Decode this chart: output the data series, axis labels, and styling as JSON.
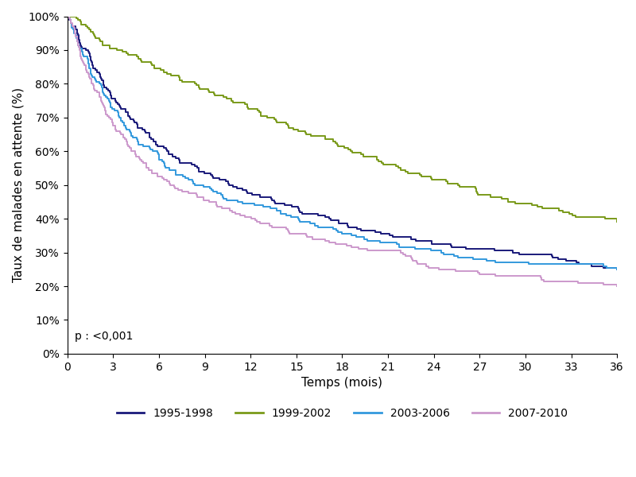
{
  "xlabel": "Temps (mois)",
  "ylabel": "Taux de malades en attente (%)",
  "xlim": [
    0,
    36
  ],
  "ylim": [
    0,
    100
  ],
  "xticks": [
    0,
    3,
    6,
    9,
    12,
    15,
    18,
    21,
    24,
    27,
    30,
    33,
    36
  ],
  "yticks": [
    0,
    10,
    20,
    30,
    40,
    50,
    60,
    70,
    80,
    90,
    100
  ],
  "annotation": "p : <0,001",
  "series": [
    {
      "label": "1995-1998",
      "color": "#1a1a7a",
      "linewidth": 1.4
    },
    {
      "label": "1999-2002",
      "color": "#7a9a1a",
      "linewidth": 1.4
    },
    {
      "label": "2003-2006",
      "color": "#3399dd",
      "linewidth": 1.4
    },
    {
      "label": "2007-2010",
      "color": "#cc99cc",
      "linewidth": 1.4
    }
  ],
  "key_points": {
    "series_0_1995": {
      "t": [
        0,
        1,
        2,
        3,
        4,
        5,
        6,
        7,
        8,
        9,
        10,
        11,
        12,
        13,
        14,
        15,
        16,
        17,
        18,
        20,
        22,
        24,
        26,
        28,
        30,
        33,
        36
      ],
      "s": [
        100,
        90,
        83,
        75,
        70,
        66,
        61,
        58,
        56,
        53,
        51,
        49,
        47,
        46,
        44,
        43,
        41,
        40,
        38,
        36,
        34,
        32,
        31,
        30,
        29,
        27,
        25
      ]
    },
    "series_1_1999": {
      "t": [
        0,
        1,
        2,
        3,
        4,
        5,
        6,
        7,
        8,
        9,
        10,
        11,
        12,
        13,
        14,
        15,
        16,
        17,
        18,
        20,
        22,
        24,
        26,
        28,
        30,
        33,
        36
      ],
      "s": [
        100,
        97,
        93,
        90,
        88,
        86,
        84,
        82,
        80,
        78,
        76,
        74,
        72,
        70,
        68,
        66,
        64,
        63,
        61,
        58,
        54,
        51,
        49,
        46,
        44,
        41,
        39
      ]
    },
    "series_2_2003": {
      "t": [
        0,
        1,
        2,
        3,
        4,
        5,
        6,
        7,
        8,
        9,
        10,
        11,
        12,
        13,
        14,
        15,
        16,
        17,
        18,
        20,
        22,
        24,
        26,
        28,
        30,
        33,
        36
      ],
      "s": [
        100,
        88,
        80,
        72,
        66,
        61,
        57,
        54,
        51,
        49,
        47,
        45,
        44,
        43,
        41,
        40,
        38,
        37,
        35,
        33,
        31,
        30,
        28,
        27,
        27,
        26,
        25
      ]
    },
    "series_3_2007": {
      "t": [
        0,
        1,
        2,
        3,
        4,
        5,
        6,
        7,
        8,
        9,
        10,
        11,
        12,
        13,
        14,
        15,
        16,
        17,
        18,
        20,
        22,
        24,
        26,
        28,
        30,
        33,
        36
      ],
      "s": [
        100,
        86,
        77,
        67,
        61,
        56,
        52,
        49,
        47,
        45,
        43,
        41,
        40,
        38,
        37,
        35,
        34,
        33,
        32,
        30,
        29,
        25,
        24,
        23,
        23,
        21,
        20
      ]
    }
  },
  "background_color": "#ffffff",
  "legend_ncol": 4,
  "tick_fontsize": 10,
  "axis_fontsize": 11,
  "legend_fontsize": 10
}
